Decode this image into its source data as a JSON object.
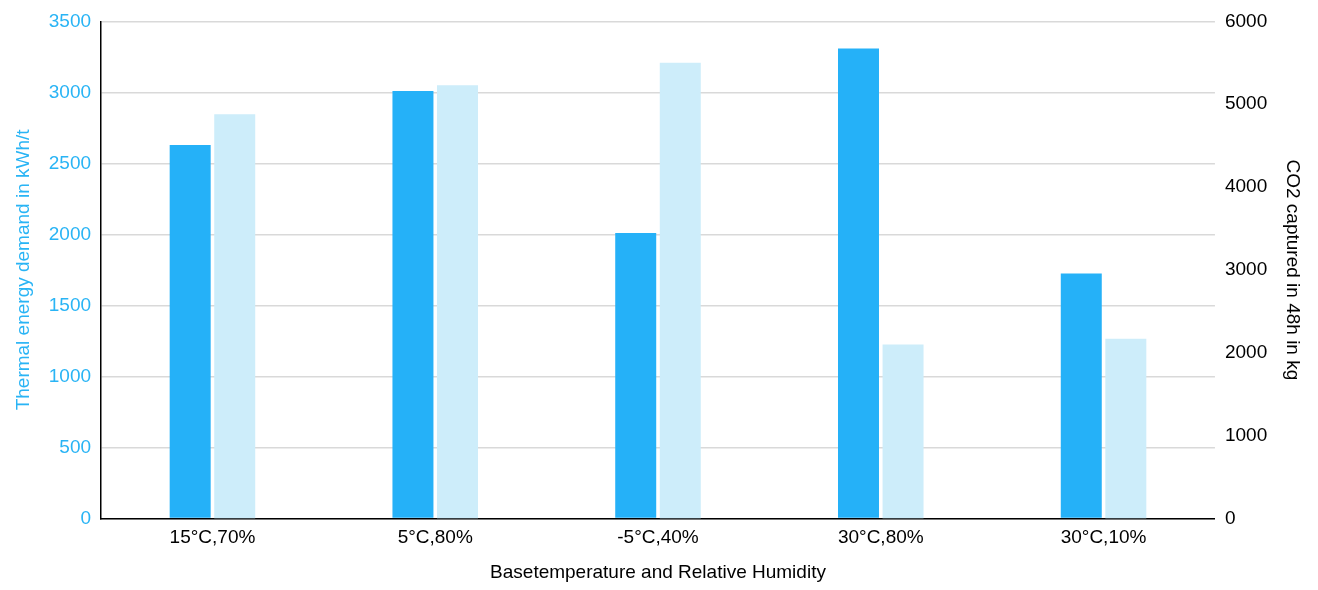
{
  "chart_data": {
    "type": "bar",
    "xlabel": "Basetemperature and Relative Humidity",
    "ylabel": "Thermal energy demand in kWh/t",
    "y2label": "CO2 captured in 48h in kg",
    "categories": [
      "15°C,70%",
      "5°C,80%",
      "-5°C,40%",
      "30°C,80%",
      "30°C,10%"
    ],
    "series": [
      {
        "color": "#25b1f8",
        "values": [
          2630,
          3010,
          2010,
          3310,
          1725
        ]
      },
      {
        "color": "#cdedfa",
        "axis": "y2",
        "values": [
          4880,
          5230,
          5500,
          2100,
          2170
        ]
      }
    ],
    "ylim": [
      0,
      3500
    ],
    "yticks": [
      0,
      500,
      1000,
      1500,
      2000,
      2500,
      3000,
      3500
    ],
    "y2lim": [
      0,
      6000
    ],
    "y2ticks": [
      0,
      1000,
      2000,
      3000,
      4000,
      5000,
      6000
    ],
    "grid": "y",
    "legend": false
  }
}
